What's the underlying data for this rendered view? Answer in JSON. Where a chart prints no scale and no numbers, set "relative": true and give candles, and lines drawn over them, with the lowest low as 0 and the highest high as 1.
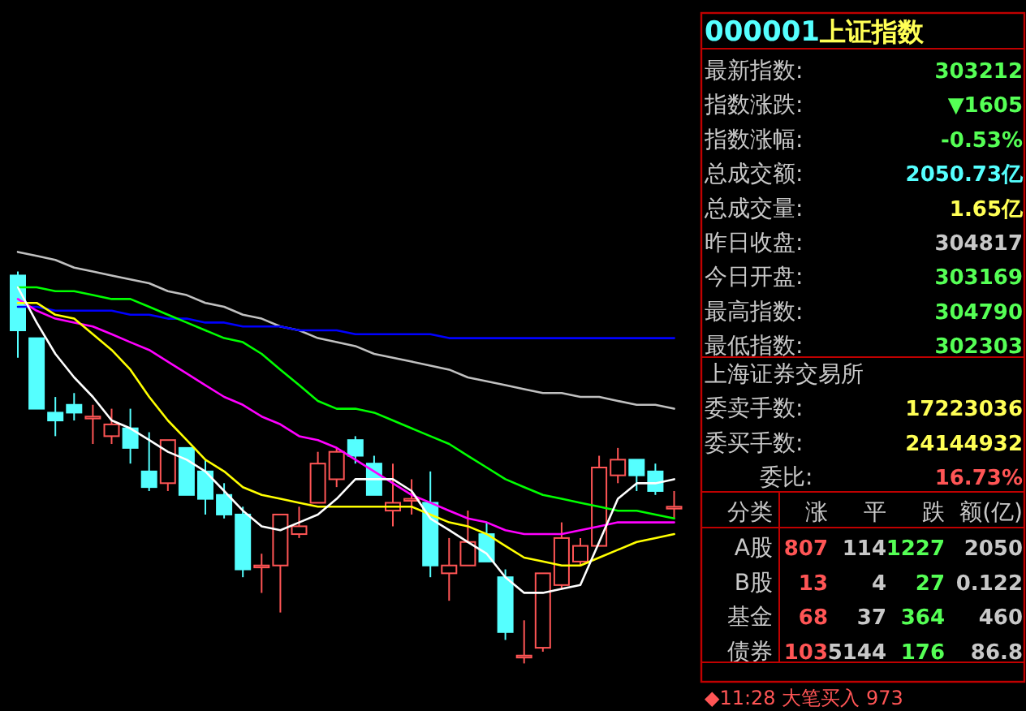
{
  "chart_data": [
    {
      "type": "candlestick",
      "relative": true,
      "categories": [
        null,
        null,
        null,
        null,
        null,
        null,
        null,
        null,
        null,
        null,
        null,
        null,
        null,
        null,
        null,
        null,
        null,
        null,
        null,
        null,
        null,
        null,
        null,
        null,
        null,
        null,
        null,
        null,
        null,
        null,
        null,
        null,
        null,
        null,
        null,
        null
      ],
      "ohlc": [
        [
          0.99,
          1.0,
          0.78,
          0.85
        ],
        [
          0.83,
          0.83,
          0.65,
          0.65
        ],
        [
          0.64,
          0.68,
          0.58,
          0.62
        ],
        [
          0.66,
          0.69,
          0.62,
          0.64
        ],
        [
          0.63,
          0.66,
          0.56,
          0.63
        ],
        [
          0.58,
          0.65,
          0.56,
          0.61
        ],
        [
          0.6,
          0.65,
          0.51,
          0.55
        ],
        [
          0.49,
          0.59,
          0.44,
          0.45
        ],
        [
          0.46,
          0.57,
          0.44,
          0.57
        ],
        [
          0.55,
          0.55,
          0.43,
          0.43
        ],
        [
          0.49,
          0.52,
          0.38,
          0.42
        ],
        [
          0.43,
          0.46,
          0.37,
          0.38
        ],
        [
          0.38,
          0.4,
          0.22,
          0.24
        ],
        [
          0.25,
          0.28,
          0.18,
          0.25
        ],
        [
          0.25,
          0.38,
          0.13,
          0.38
        ],
        [
          0.33,
          0.4,
          0.32,
          0.35
        ],
        [
          0.41,
          0.54,
          0.41,
          0.51
        ],
        [
          0.47,
          0.55,
          0.45,
          0.54
        ],
        [
          0.57,
          0.58,
          0.51,
          0.53
        ],
        [
          0.51,
          0.53,
          0.43,
          0.43
        ],
        [
          0.39,
          0.51,
          0.35,
          0.41
        ],
        [
          0.42,
          0.47,
          0.38,
          0.42
        ],
        [
          0.41,
          0.49,
          0.22,
          0.25
        ],
        [
          0.23,
          0.32,
          0.16,
          0.25
        ],
        [
          0.25,
          0.39,
          0.25,
          0.31
        ],
        [
          0.33,
          0.36,
          0.26,
          0.26
        ],
        [
          0.22,
          0.24,
          0.06,
          0.08
        ],
        [
          0.02,
          0.11,
          0.0,
          0.02
        ],
        [
          0.04,
          0.23,
          0.03,
          0.23
        ],
        [
          0.2,
          0.36,
          0.19,
          0.32
        ],
        [
          0.26,
          0.32,
          0.25,
          0.3
        ],
        [
          0.3,
          0.53,
          0.3,
          0.5
        ],
        [
          0.48,
          0.55,
          0.46,
          0.52
        ],
        [
          0.52,
          0.52,
          0.44,
          0.48
        ],
        [
          0.49,
          0.51,
          0.43,
          0.44
        ],
        [
          0.4,
          0.44,
          0.37,
          0.4
        ]
      ],
      "series": [
        {
          "type": "line",
          "color": "#c0c0c0",
          "values": [
            1.05,
            1.04,
            1.03,
            1.01,
            1.0,
            0.99,
            0.98,
            0.97,
            0.95,
            0.94,
            0.92,
            0.91,
            0.89,
            0.88,
            0.86,
            0.85,
            0.83,
            0.82,
            0.81,
            0.79,
            0.78,
            0.77,
            0.76,
            0.75,
            0.73,
            0.72,
            0.71,
            0.7,
            0.69,
            0.69,
            0.68,
            0.68,
            0.67,
            0.66,
            0.66,
            0.65
          ]
        },
        {
          "type": "line",
          "color": "#0000ff",
          "values": [
            0.91,
            0.91,
            0.9,
            0.9,
            0.9,
            0.9,
            0.89,
            0.89,
            0.88,
            0.88,
            0.87,
            0.87,
            0.86,
            0.86,
            0.86,
            0.85,
            0.85,
            0.85,
            0.84,
            0.84,
            0.84,
            0.84,
            0.84,
            0.83,
            0.83,
            0.83,
            0.83,
            0.83,
            0.83,
            0.83,
            0.83,
            0.83,
            0.83,
            0.83,
            0.83,
            0.83
          ]
        },
        {
          "type": "line",
          "color": "#00ff00",
          "values": [
            0.96,
            0.96,
            0.95,
            0.95,
            0.94,
            0.93,
            0.93,
            0.91,
            0.89,
            0.87,
            0.85,
            0.83,
            0.82,
            0.79,
            0.75,
            0.71,
            0.67,
            0.65,
            0.65,
            0.64,
            0.62,
            0.6,
            0.58,
            0.56,
            0.53,
            0.5,
            0.47,
            0.45,
            0.43,
            0.42,
            0.41,
            0.4,
            0.39,
            0.39,
            0.38,
            0.37
          ]
        },
        {
          "type": "line",
          "color": "#ff00ff",
          "values": [
            0.93,
            0.9,
            0.88,
            0.87,
            0.86,
            0.84,
            0.82,
            0.8,
            0.77,
            0.74,
            0.71,
            0.68,
            0.66,
            0.63,
            0.61,
            0.58,
            0.57,
            0.55,
            0.52,
            0.49,
            0.46,
            0.43,
            0.41,
            0.39,
            0.37,
            0.36,
            0.34,
            0.33,
            0.33,
            0.33,
            0.34,
            0.35,
            0.36,
            0.36,
            0.36,
            0.36
          ]
        },
        {
          "type": "line",
          "color": "#ffff00",
          "values": [
            0.92,
            0.92,
            0.89,
            0.88,
            0.84,
            0.8,
            0.75,
            0.68,
            0.62,
            0.57,
            0.52,
            0.49,
            0.45,
            0.43,
            0.42,
            0.41,
            0.4,
            0.4,
            0.4,
            0.4,
            0.4,
            0.4,
            0.38,
            0.36,
            0.35,
            0.33,
            0.3,
            0.27,
            0.26,
            0.25,
            0.25,
            0.27,
            0.29,
            0.31,
            0.32,
            0.33
          ]
        },
        {
          "type": "line",
          "color": "#ffffff",
          "values": [
            0.96,
            0.87,
            0.79,
            0.73,
            0.68,
            0.62,
            0.6,
            0.57,
            0.54,
            0.52,
            0.49,
            0.44,
            0.39,
            0.35,
            0.34,
            0.36,
            0.38,
            0.42,
            0.47,
            0.47,
            0.47,
            0.44,
            0.37,
            0.34,
            0.31,
            0.28,
            0.22,
            0.18,
            0.18,
            0.19,
            0.2,
            0.31,
            0.42,
            0.46,
            0.46,
            0.47
          ]
        }
      ]
    },
    {
      "type": "other",
      "annotations": [
        "000001",
        "上证指数",
        "最新指数:",
        "303212",
        "指数涨跌:",
        "▼1605",
        "指数涨幅:",
        "-0.53%",
        "总成交额:",
        "2050.73亿",
        "总成交量:",
        "1.65亿",
        "昨日收盘:",
        "304817",
        "今日开盘:",
        "303169",
        "最高指数:",
        "304790",
        "最低指数:",
        "302303",
        "上海证券交易所",
        "委卖手数:",
        "17223036",
        "委买手数:",
        "24144932",
        "委比:",
        "16.73%",
        "分类",
        "涨",
        "平",
        "跌",
        "额(亿)",
        "A股",
        "807",
        "114",
        "1227",
        "2050",
        "B股",
        "13",
        "4",
        "27",
        "0.122",
        "基金",
        "68",
        "37",
        "364",
        "460",
        "债券",
        "103",
        "5144",
        "176",
        "86.8",
        "◆11:28 大笔买入 973"
      ]
    }
  ]
}
